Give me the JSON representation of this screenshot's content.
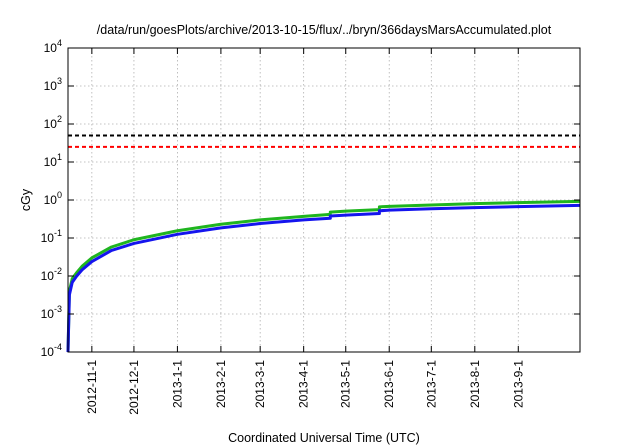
{
  "chart_data": {
    "type": "line",
    "title": "/data/run/goesPlots/archive/2013-10-15/flux/../bryn/366daysMarsAccumulated.plot",
    "xlabel": "Coordinated Universal Time (UTC)",
    "ylabel": "cGy",
    "yscale": "log",
    "ylim": [
      0.0001,
      10000
    ],
    "xlim": [
      "2012-10-15",
      "2013-10-15"
    ],
    "grid": true,
    "y_ticks": [
      {
        "value": 0.0001,
        "base": "10",
        "exp": "-4"
      },
      {
        "value": 0.001,
        "base": "10",
        "exp": "-3"
      },
      {
        "value": 0.01,
        "base": "10",
        "exp": "-2"
      },
      {
        "value": 0.1,
        "base": "10",
        "exp": "-1"
      },
      {
        "value": 1,
        "base": "10",
        "exp": "0"
      },
      {
        "value": 10,
        "base": "10",
        "exp": "1"
      },
      {
        "value": 100,
        "base": "10",
        "exp": "2"
      },
      {
        "value": 1000,
        "base": "10",
        "exp": "3"
      },
      {
        "value": 10000,
        "base": "10",
        "exp": "4"
      }
    ],
    "x_ticks": [
      "2012-11-1",
      "2012-12-1",
      "2013-1-1",
      "2013-2-1",
      "2013-3-1",
      "2013-4-1",
      "2013-5-1",
      "2013-6-1",
      "2013-7-1",
      "2013-8-1",
      "2013-9-1"
    ],
    "reference_lines": [
      {
        "value": 50,
        "color": "#000000",
        "style": "dashed"
      },
      {
        "value": 25,
        "color": "#ff0000",
        "style": "dashed"
      }
    ],
    "series": [
      {
        "color": "#1fb51f",
        "points": [
          [
            "2012-10-15",
            0.0001
          ],
          [
            "2012-10-16",
            0.004
          ],
          [
            "2012-10-18",
            0.0085
          ],
          [
            "2012-10-21",
            0.012
          ],
          [
            "2012-10-25",
            0.018
          ],
          [
            "2012-11-1",
            0.03
          ],
          [
            "2012-11-15",
            0.058
          ],
          [
            "2012-12-1",
            0.09
          ],
          [
            "2013-1-1",
            0.155
          ],
          [
            "2013-2-1",
            0.23
          ],
          [
            "2013-3-1",
            0.3
          ],
          [
            "2013-4-1",
            0.37
          ],
          [
            "2013-4-20",
            0.42
          ],
          [
            "2013-4-20",
            0.48
          ],
          [
            "2013-5-1",
            0.51
          ],
          [
            "2013-5-25",
            0.56
          ],
          [
            "2013-5-25",
            0.66
          ],
          [
            "2013-6-1",
            0.68
          ],
          [
            "2013-7-1",
            0.74
          ],
          [
            "2013-8-1",
            0.8
          ],
          [
            "2013-9-1",
            0.85
          ],
          [
            "2013-10-15",
            0.92
          ]
        ]
      },
      {
        "color": "#1515ee",
        "points": [
          [
            "2012-10-15",
            0.0001
          ],
          [
            "2012-10-16",
            0.0032
          ],
          [
            "2012-10-18",
            0.0068
          ],
          [
            "2012-10-21",
            0.0098
          ],
          [
            "2012-10-25",
            0.0145
          ],
          [
            "2012-11-1",
            0.024
          ],
          [
            "2012-11-15",
            0.047
          ],
          [
            "2012-12-1",
            0.072
          ],
          [
            "2013-1-1",
            0.125
          ],
          [
            "2013-2-1",
            0.185
          ],
          [
            "2013-3-1",
            0.24
          ],
          [
            "2013-4-1",
            0.3
          ],
          [
            "2013-4-20",
            0.33
          ],
          [
            "2013-4-20",
            0.38
          ],
          [
            "2013-5-1",
            0.4
          ],
          [
            "2013-5-25",
            0.44
          ],
          [
            "2013-5-25",
            0.52
          ],
          [
            "2013-6-1",
            0.54
          ],
          [
            "2013-7-1",
            0.59
          ],
          [
            "2013-8-1",
            0.63
          ],
          [
            "2013-9-1",
            0.67
          ],
          [
            "2013-10-15",
            0.72
          ]
        ]
      }
    ]
  }
}
